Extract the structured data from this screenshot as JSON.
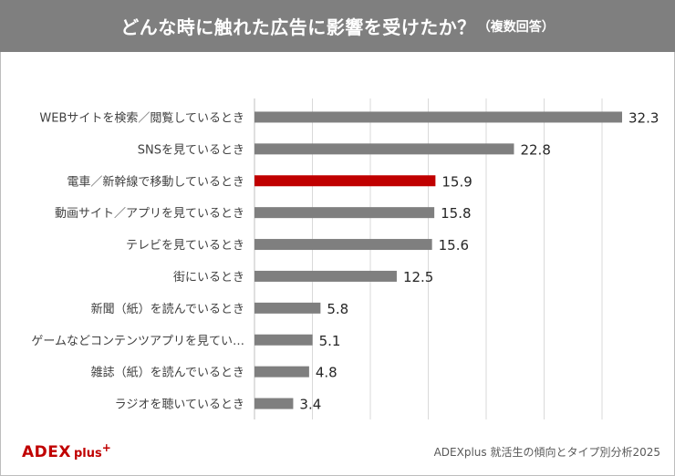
{
  "header": {
    "title": "どんな時に触れた広告に影響を受けたか？",
    "subtitle": "（複数回答）"
  },
  "footer": {
    "logo_main": "ADEX",
    "logo_sub": "plus",
    "logo_plus": "+",
    "source": "ADEXplus 就活生の傾向とタイプ別分析2025"
  },
  "colors": {
    "bar": "#7f7f7f",
    "highlight": "#c00000",
    "header": "#7f7f7f",
    "grid": "#d9d9d9"
  },
  "chart_data": {
    "type": "bar",
    "orientation": "horizontal",
    "title": "どんな時に触れた広告に影響を受けたか？",
    "subtitle": "（複数回答）",
    "categories": [
      "WEBサイトを検索／閲覧しているとき",
      "SNSを見ているとき",
      "電車／新幹線で移動しているとき",
      "動画サイト／アプリを見ているとき",
      "テレビを見ているとき",
      "街にいるとき",
      "新聞（紙）を読んでいるとき",
      "ゲームなどコンテンツアプリを見てい…",
      "雑誌（紙）を読んでいるとき",
      "ラジオを聴いているとき"
    ],
    "values": [
      32.3,
      22.8,
      15.9,
      15.8,
      15.6,
      12.5,
      5.8,
      5.1,
      4.8,
      3.4
    ],
    "value_labels": [
      "32.3",
      "22.8",
      "15.9",
      "15.8",
      "15.6",
      "12.5",
      "5.8",
      "5.1",
      "4.8",
      "3.4"
    ],
    "highlight_index": 2,
    "xlim": [
      0,
      35
    ],
    "grid": true,
    "legend": "none"
  }
}
